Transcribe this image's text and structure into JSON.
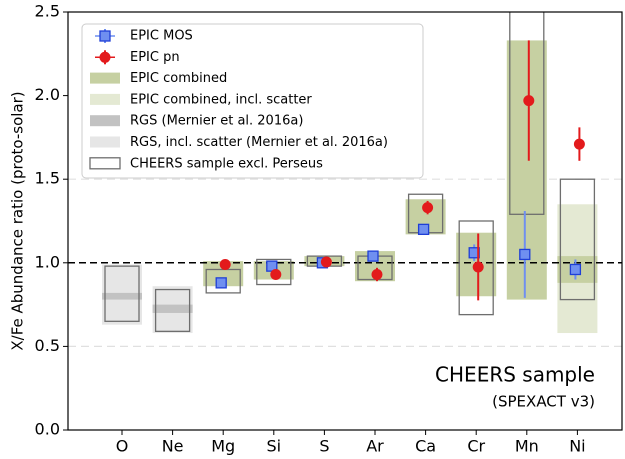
{
  "chart_data": {
    "type": "abundance",
    "y_label": "X/Fe Abundance ratio (proto-solar)",
    "annotations": [
      "CHEERS sample",
      "(SPEXACT v3)"
    ],
    "categories": [
      "O",
      "Ne",
      "Mg",
      "Si",
      "S",
      "Ar",
      "Ca",
      "Cr",
      "Mn",
      "Ni"
    ],
    "ylim": [
      0,
      2.5
    ],
    "yticks": [
      {
        "value": 0,
        "label": "0.0"
      },
      0.5,
      {
        "value": 1,
        "label": "1.0"
      },
      1.5,
      {
        "value": 2,
        "label": "2.0"
      },
      2.5
    ],
    "grid_lines": [
      0.5,
      1.5
    ],
    "reference_line": 1,
    "series": [
      {
        "name": "EPIC combined, incl. scatter",
        "color": "#e4e9d3",
        "low": [
          null,
          null,
          null,
          null,
          null,
          null,
          null,
          null,
          null,
          0.58
        ],
        "high": [
          null,
          null,
          null,
          null,
          null,
          null,
          null,
          null,
          null,
          1.35
        ]
      },
      {
        "name": "RGS, incl. scatter (Mernier et al. 2016a)",
        "color": "#e6e6e6",
        "low": [
          0.63,
          0.58,
          null,
          null,
          null,
          null,
          null,
          null,
          null,
          null
        ],
        "high": [
          0.99,
          0.86,
          null,
          null,
          null,
          null,
          null,
          null,
          null,
          null
        ]
      },
      {
        "name": "EPIC combined",
        "color": "#c6d0a2",
        "low": [
          null,
          null,
          0.86,
          0.9,
          0.98,
          0.89,
          1.17,
          0.8,
          0.78,
          0.88
        ],
        "high": [
          null,
          null,
          1.01,
          1.01,
          1.04,
          1.07,
          1.38,
          1.18,
          2.33,
          1.04
        ]
      },
      {
        "name": "RGS (Mernier et al. 2016a)",
        "color": "#c2c2c2",
        "low": [
          0.78,
          0.7,
          null,
          null,
          null,
          null,
          null,
          null,
          null,
          null
        ],
        "high": [
          0.82,
          0.75,
          null,
          null,
          null,
          null,
          null,
          null,
          null,
          null
        ]
      },
      {
        "name": "CHEERS sample excl. Perseus",
        "color": "#6e6e6e",
        "outline": true,
        "low": [
          0.65,
          0.59,
          0.82,
          0.87,
          0.98,
          0.9,
          1.18,
          0.69,
          1.29,
          0.78
        ],
        "high": [
          0.98,
          0.84,
          0.96,
          1.02,
          1.04,
          1.04,
          1.41,
          1.25,
          2.6,
          1.5
        ]
      },
      {
        "name": "EPIC MOS",
        "color": "#6f8ff0",
        "edgecolor": "#1f3fd6",
        "marker": "square",
        "values": [
          null,
          null,
          0.88,
          0.98,
          1.0,
          1.04,
          1.2,
          1.06,
          1.05,
          0.96
        ],
        "errors": [
          null,
          null,
          0.02,
          0.02,
          0.01,
          0.02,
          0.02,
          0.05,
          0.26,
          0.06
        ]
      },
      {
        "name": "EPIC pn",
        "color": "#e31a1c",
        "edgecolor": "#e31a1c",
        "marker": "circle",
        "values": [
          null,
          null,
          0.99,
          0.93,
          1.005,
          0.93,
          1.33,
          0.975,
          1.97,
          1.71
        ],
        "errors": [
          null,
          null,
          0.02,
          0.03,
          0.01,
          0.04,
          0.04,
          0.2,
          0.36,
          0.1
        ]
      }
    ],
    "legend_order": [
      5,
      6,
      2,
      0,
      3,
      1,
      4
    ]
  }
}
